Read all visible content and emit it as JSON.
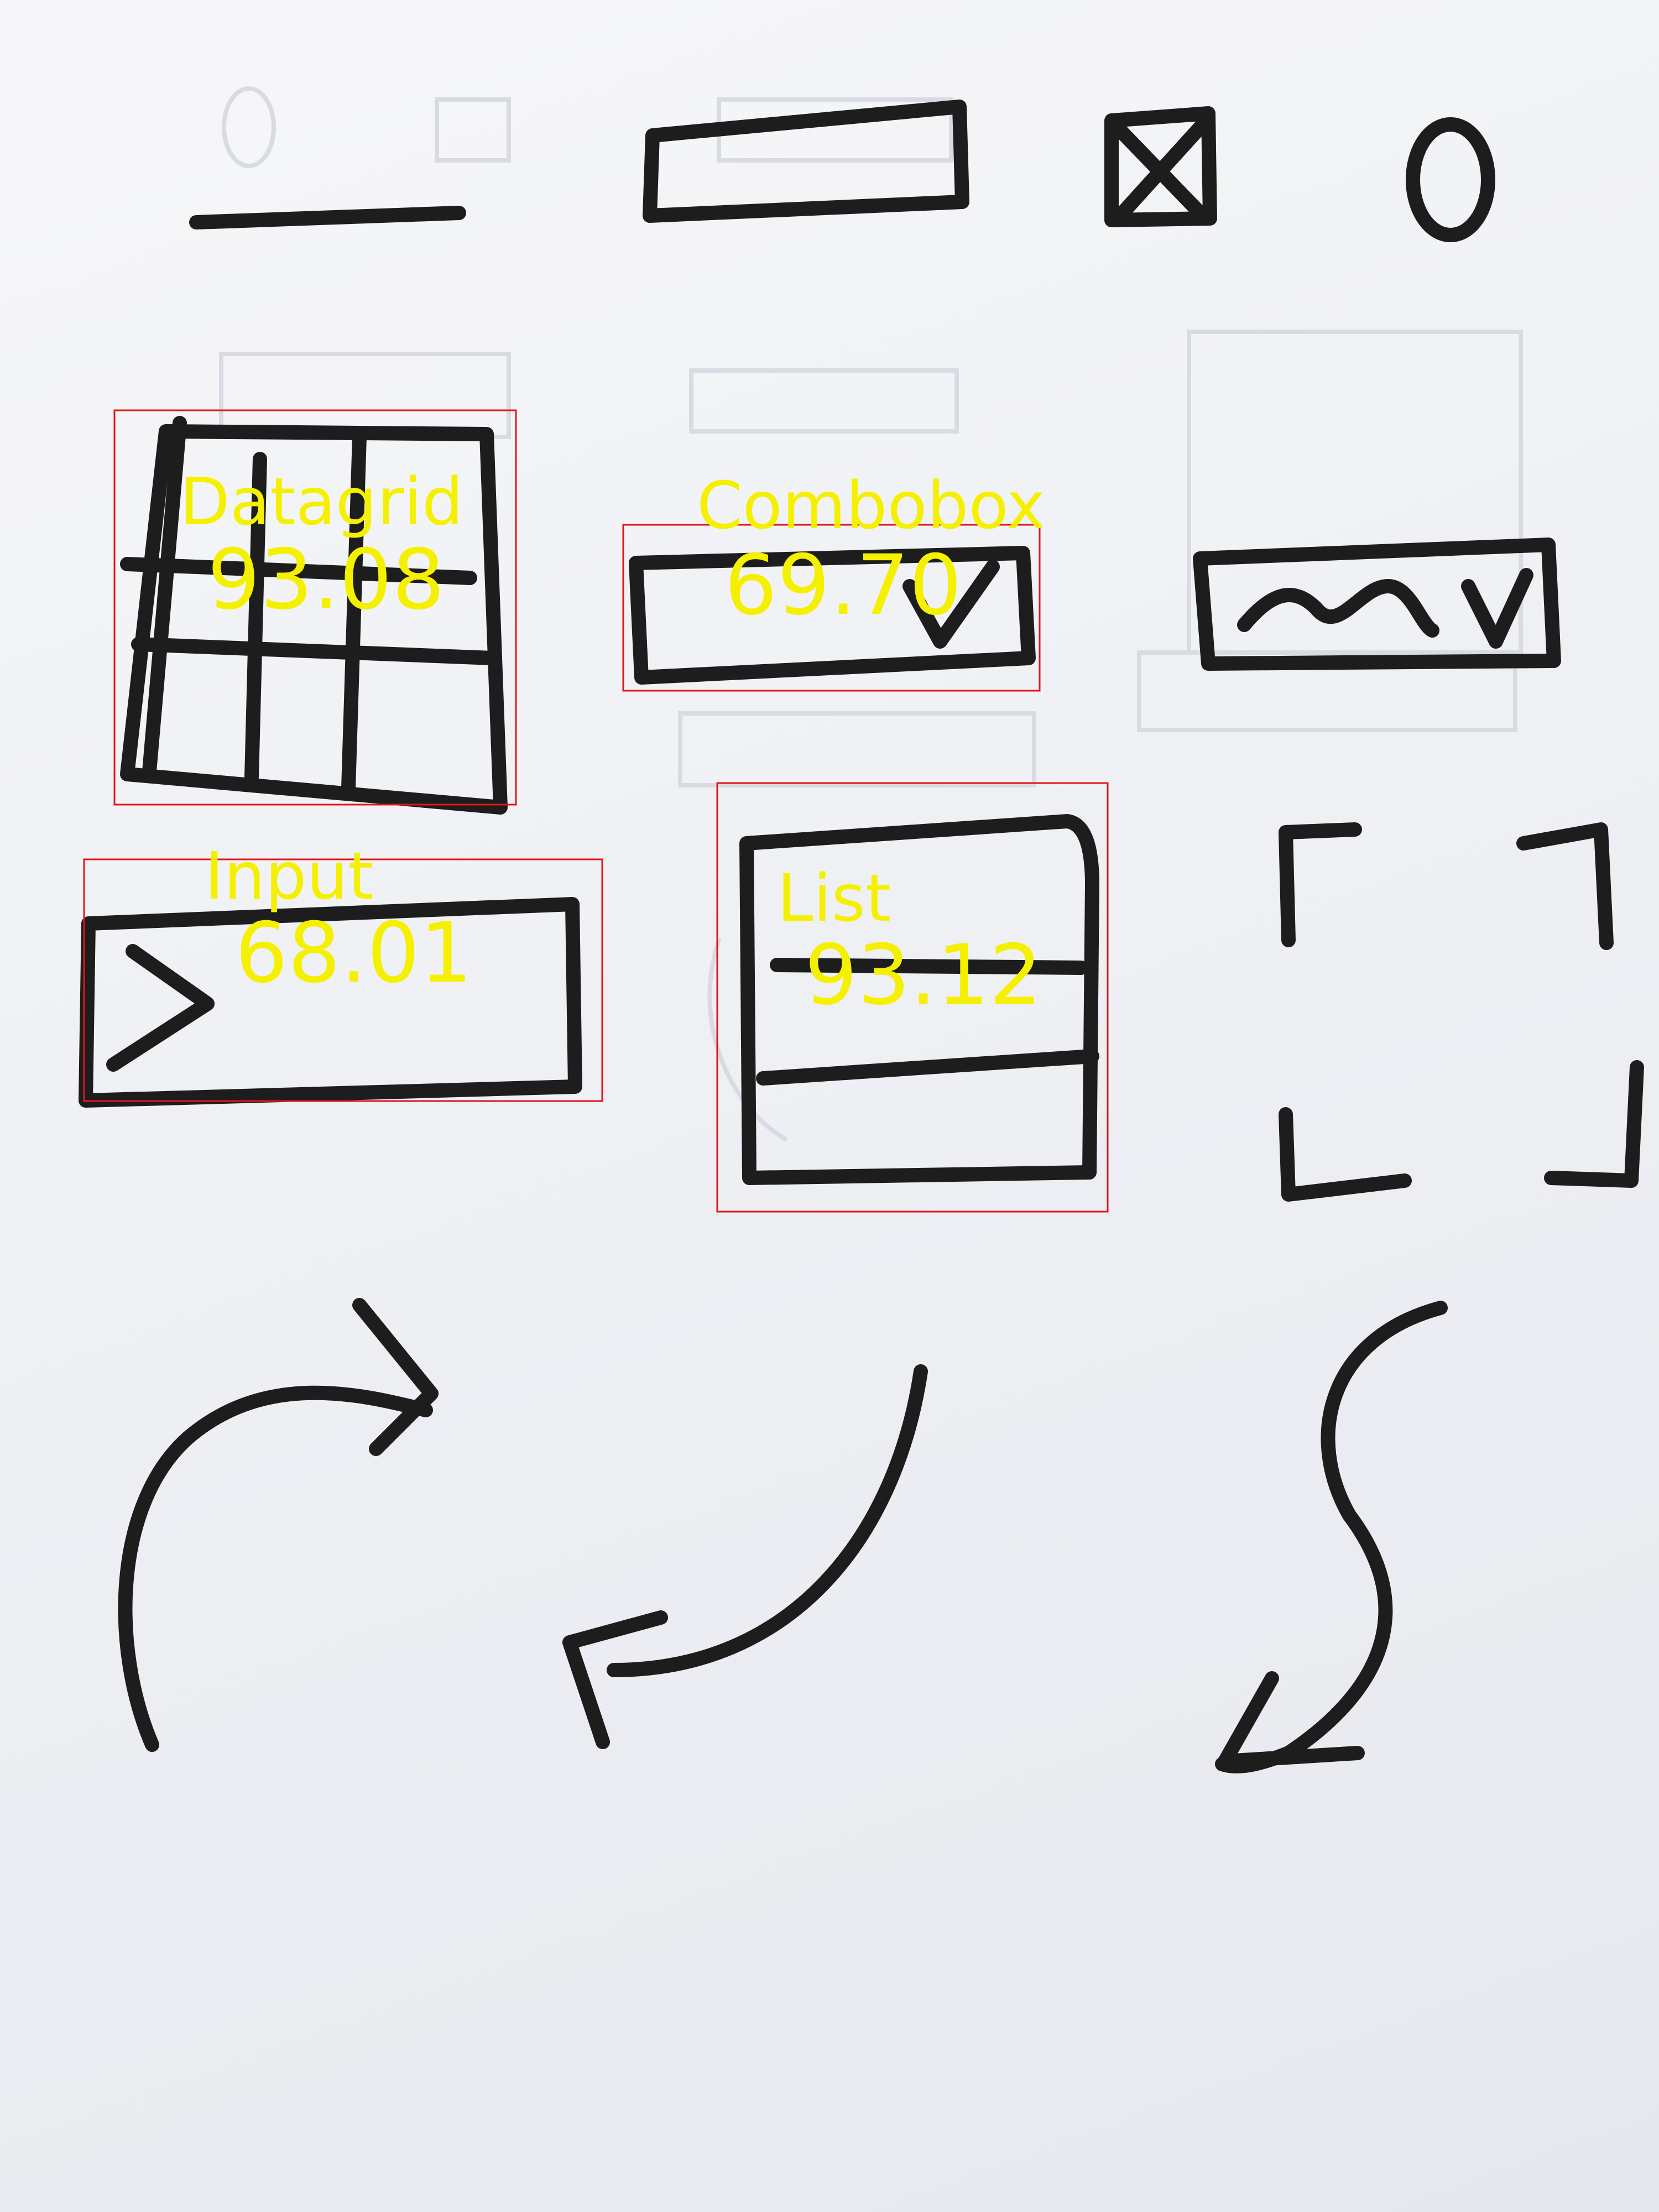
{
  "colors": {
    "paper": "#eef0f4",
    "ink": "#1d1d1d",
    "box": "#e0161b",
    "text": "#f4f000"
  },
  "detections": [
    {
      "label": "Datagrid",
      "score": "93.08"
    },
    {
      "label": "Combobox",
      "score": "69.70"
    },
    {
      "label": "Input",
      "score": "68.01"
    },
    {
      "label": "List",
      "score": "93.12"
    }
  ]
}
